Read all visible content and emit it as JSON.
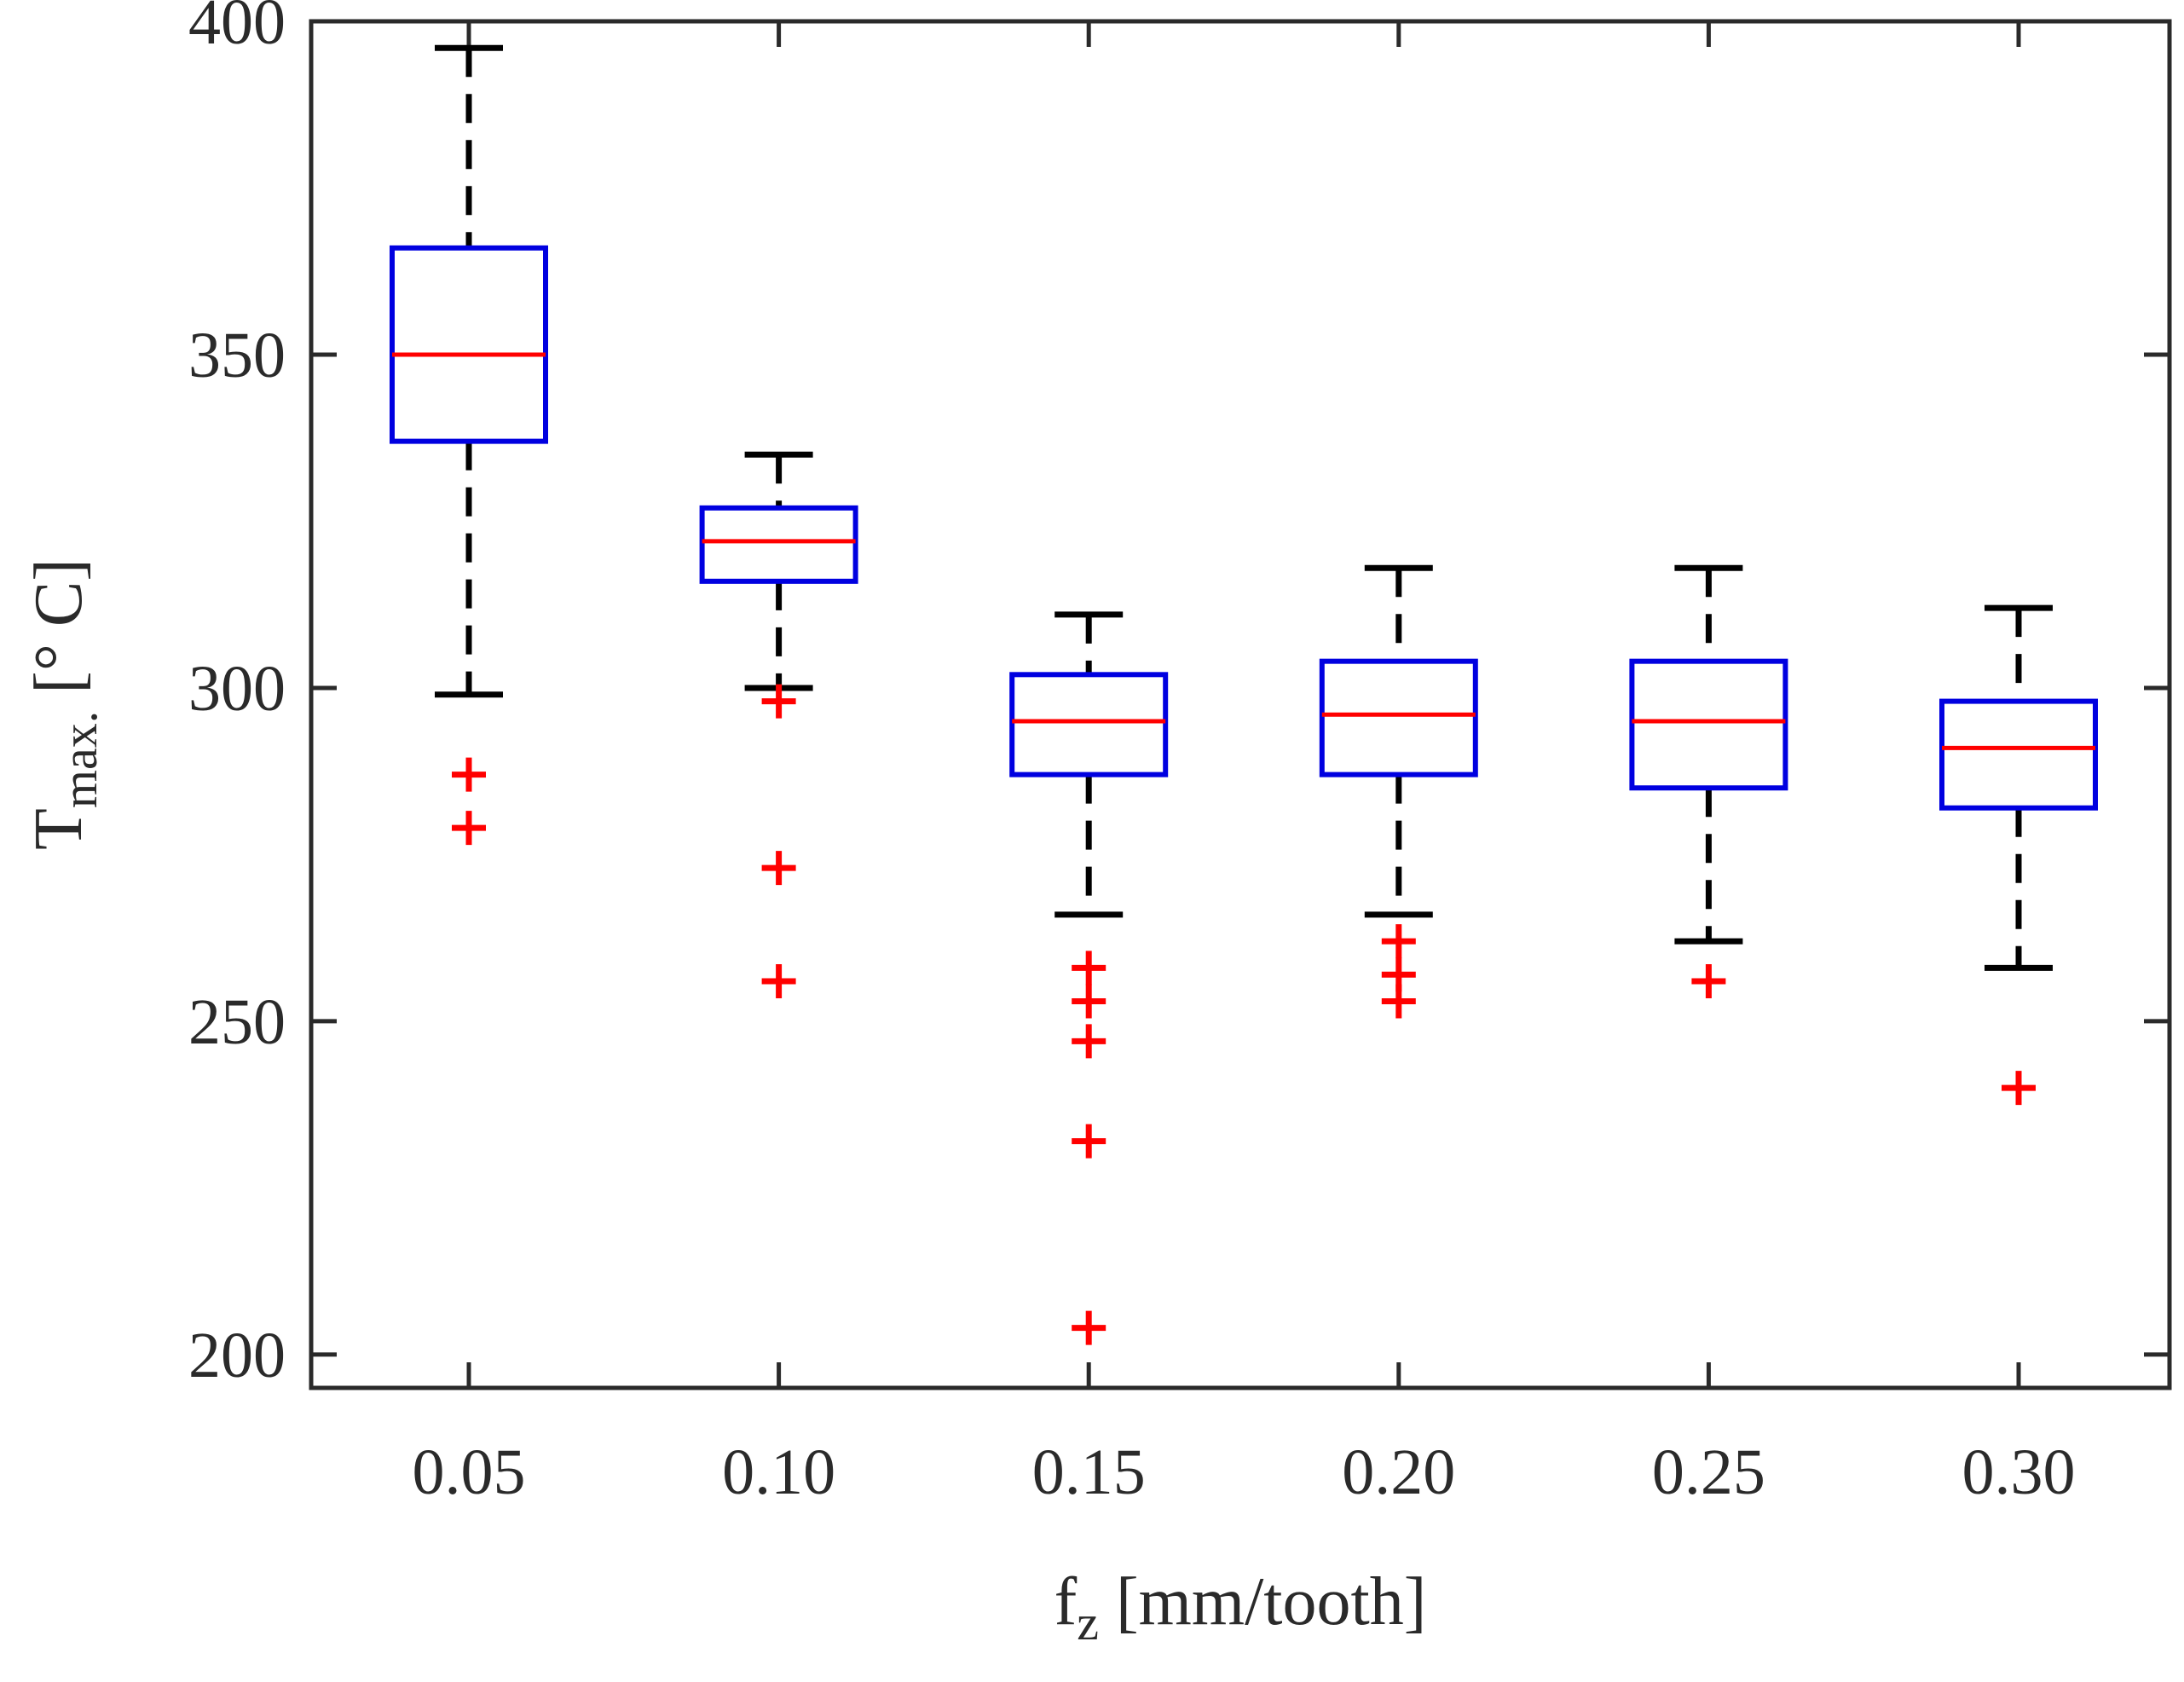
{
  "chart_data": {
    "type": "box",
    "xlabel": {
      "main": "f",
      "sub": "z",
      "rest": " [mm/tooth]"
    },
    "ylabel": {
      "main": "T",
      "sub": "max.",
      "rest": " [° C]"
    },
    "ylim": [
      195,
      400
    ],
    "yticks": [
      200,
      250,
      300,
      350,
      400
    ],
    "categories": [
      "0.05",
      "0.10",
      "0.15",
      "0.20",
      "0.25",
      "0.30"
    ],
    "boxes": [
      {
        "category": "0.05",
        "whisker_low": 299,
        "q1": 337,
        "median": 350,
        "q3": 366,
        "whisker_high": 396,
        "outliers": [
          287,
          279
        ]
      },
      {
        "category": "0.10",
        "whisker_low": 300,
        "q1": 316,
        "median": 322,
        "q3": 327,
        "whisker_high": 335,
        "outliers": [
          298,
          273,
          256
        ]
      },
      {
        "category": "0.15",
        "whisker_low": 266,
        "q1": 287,
        "median": 295,
        "q3": 302,
        "whisker_high": 311,
        "outliers": [
          258,
          253,
          247,
          232,
          204
        ]
      },
      {
        "category": "0.20",
        "whisker_low": 266,
        "q1": 287,
        "median": 296,
        "q3": 304,
        "whisker_high": 318,
        "outliers": [
          262,
          257,
          253
        ]
      },
      {
        "category": "0.25",
        "whisker_low": 262,
        "q1": 285,
        "median": 295,
        "q3": 304,
        "whisker_high": 318,
        "outliers": [
          256
        ]
      },
      {
        "category": "0.30",
        "whisker_low": 258,
        "q1": 282,
        "median": 291,
        "q3": 298,
        "whisker_high": 312,
        "outliers": [
          240
        ]
      }
    ],
    "colors": {
      "box": "#0000e0",
      "median": "#ff0000",
      "whisker": "#000000",
      "outlier": "#ff0000",
      "axis": "#2a2a2a"
    }
  }
}
